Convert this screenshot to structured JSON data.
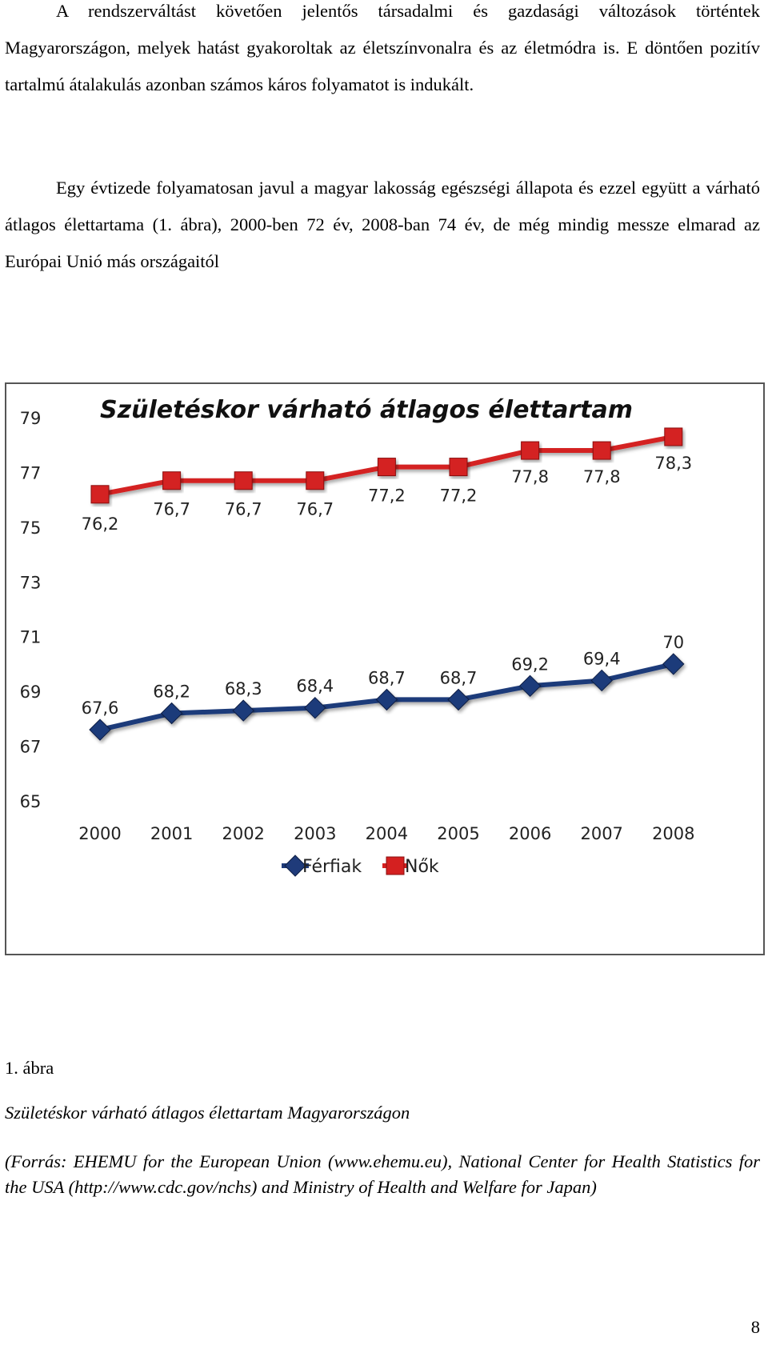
{
  "paragraphs": [
    "A rendszerváltást követően jelentős társadalmi és gazdasági változások történtek Magyarországon, melyek hatást gyakoroltak az életszínvonalra és az életmódra is. E döntően pozitív tartalmú átalakulás azonban számos káros folyamatot is indukált.",
    "Egy évtizede folyamatosan javul a magyar lakosság egészségi állapota és ezzel együtt a várható átlagos élettartama (1. ábra), 2000-ben 72 év, 2008-ban 74 év, de még mindig messze elmarad az Európai Unió más országaitól"
  ],
  "chart_data": {
    "type": "line",
    "title": "Születéskor várható átlagos élettartam",
    "xlabel": "",
    "ylabel": "",
    "x": [
      "2000",
      "2001",
      "2002",
      "2003",
      "2004",
      "2005",
      "2006",
      "2007",
      "2008"
    ],
    "y_ticks": [
      "65",
      "67",
      "69",
      "71",
      "73",
      "75",
      "77",
      "79"
    ],
    "ylim": [
      65,
      79
    ],
    "grid": false,
    "legend_position": "bottom",
    "series": [
      {
        "name": "Férfiak",
        "color": "#1f3b7a",
        "marker": "diamond",
        "values": [
          67.6,
          68.2,
          68.3,
          68.4,
          68.7,
          68.7,
          69.2,
          69.4,
          70
        ],
        "labels": [
          "67,6",
          "68,2",
          "68,3",
          "68,4",
          "68,7",
          "68,7",
          "69,2",
          "69,4",
          "70"
        ]
      },
      {
        "name": "Nők",
        "color": "#d42020",
        "marker": "square",
        "values": [
          76.2,
          76.7,
          76.7,
          76.7,
          77.2,
          77.2,
          77.8,
          77.8,
          78.3
        ],
        "labels": [
          "76,2",
          "76,7",
          "76,7",
          "76,7",
          "77,2",
          "77,2",
          "77,8",
          "77,8",
          "78,3"
        ]
      }
    ]
  },
  "captions": {
    "number": "1. ábra",
    "title": "Születéskor várható átlagos élettartam Magyarországon",
    "source": "(Forrás: EHEMU for the European Union (www.ehemu.eu), National Center for Health Statistics for the USA (http://www.cdc.gov/nchs) and Ministry of Health and Welfare for Japan)"
  },
  "page_number": "8"
}
